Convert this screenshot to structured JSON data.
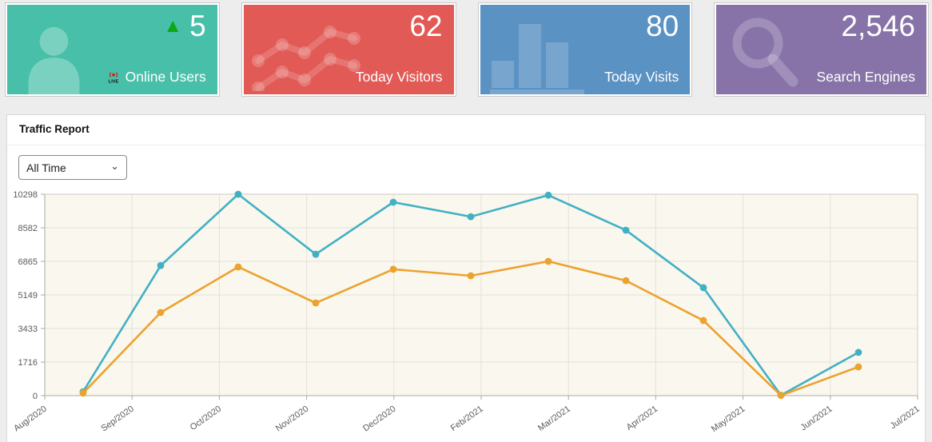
{
  "cards": [
    {
      "value": "5",
      "label": "Online Users",
      "color": "#48bfa8",
      "icon": "person-icon",
      "trend_arrow": "▲",
      "trend_color": "#0ca816",
      "live_badge": "LIVE"
    },
    {
      "value": "62",
      "label": "Today Visitors",
      "color": "#e25a56",
      "icon": "line-chart-icon"
    },
    {
      "value": "80",
      "label": "Today Visits",
      "color": "#5b92c4",
      "icon": "bar-chart-icon"
    },
    {
      "value": "2,546",
      "label": "Search Engines",
      "color": "#8873a8",
      "icon": "search-icon"
    }
  ],
  "panel": {
    "title": "Traffic Report",
    "filter": {
      "selected": "All Time",
      "options": [
        "All Time"
      ]
    }
  },
  "chart_data": {
    "type": "line",
    "categories": [
      "Aug/2020",
      "Sep/2020",
      "Oct/2020",
      "Nov/2020",
      "Dec/2020",
      "Feb/2021",
      "Mar/2021",
      "Apr/2021",
      "May/2021",
      "Jun/2021",
      "Jul/2021"
    ],
    "y_ticks": [
      0,
      1716,
      3433,
      5149,
      6865,
      8582,
      10298
    ],
    "ylim": [
      0,
      10298
    ],
    "series": [
      {
        "name": "teal-line",
        "color": "#41b0c4",
        "values": [
          200,
          6650,
          10298,
          7230,
          9890,
          9150,
          10250,
          8460,
          5520,
          20,
          2210
        ]
      },
      {
        "name": "orange-line",
        "color": "#eca22e",
        "values": [
          130,
          4250,
          6580,
          4740,
          6460,
          6130,
          6865,
          5880,
          3840,
          10,
          1470
        ]
      }
    ],
    "title": "",
    "xlabel": "",
    "ylabel": "",
    "grid": true,
    "legend": "none",
    "plot_bg": "#faf7ee"
  }
}
